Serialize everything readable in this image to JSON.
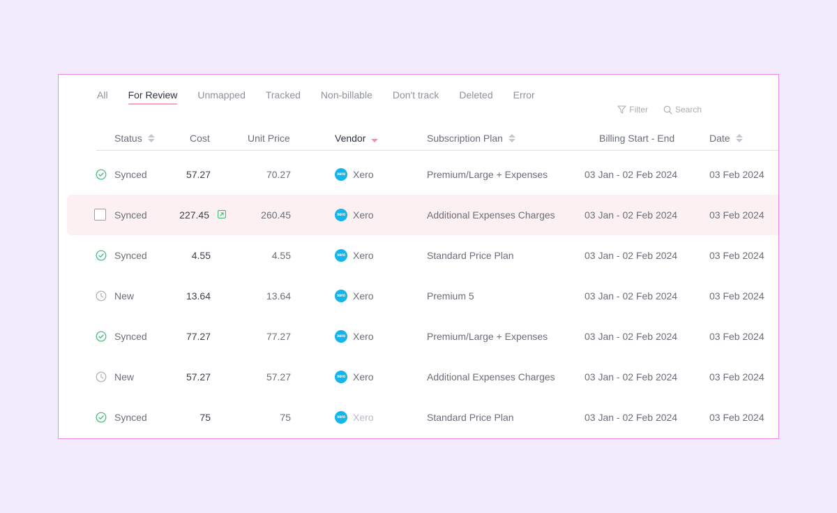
{
  "tabs": [
    {
      "label": "All",
      "active": false
    },
    {
      "label": "For Review",
      "active": true
    },
    {
      "label": "Unmapped",
      "active": false
    },
    {
      "label": "Tracked",
      "active": false
    },
    {
      "label": "Non-billable",
      "active": false
    },
    {
      "label": "Don't track",
      "active": false
    },
    {
      "label": "Deleted",
      "active": false
    },
    {
      "label": "Error",
      "active": false
    }
  ],
  "toolbar": {
    "filter_label": "Filter",
    "search_label": "Search",
    "filter_icon": "filter-icon",
    "search_icon": "search-icon"
  },
  "columns": {
    "status": "Status",
    "cost": "Cost",
    "unit_price": "Unit Price",
    "vendor": "Vendor",
    "plan": "Subscription Plan",
    "billing": "Billing Start - End",
    "date": "Date"
  },
  "vendor_logo_text": "xero",
  "colors": {
    "accent": "#f4a3c8",
    "synced": "#3cb878",
    "new": "#a9acb4",
    "highlight_row": "#fdf0f3",
    "xero": "#13b5ea",
    "border": "#ee86ee",
    "background": "#f2ecfd"
  },
  "rows": [
    {
      "status": "Synced",
      "status_icon": "check-circle-icon",
      "cost": "57.27",
      "unit_price": "70.27",
      "vendor": "Xero",
      "plan": "Premium/Large + Expenses",
      "billing": "03 Jan - 02 Feb 2024",
      "date": "03 Feb 2024"
    },
    {
      "status": "Synced",
      "status_icon": "checkbox",
      "highlighted": true,
      "cost": "227.45",
      "cost_icon": "external-link-icon",
      "unit_price": "260.45",
      "vendor": "Xero",
      "plan": "Additional Expenses Charges",
      "billing": "03 Jan - 02 Feb 2024",
      "date": "03 Feb 2024"
    },
    {
      "status": "Synced",
      "status_icon": "check-circle-icon",
      "cost": "4.55",
      "unit_price": "4.55",
      "vendor": "Xero",
      "plan": "Standard Price Plan",
      "billing": "03 Jan - 02 Feb 2024",
      "date": "03 Feb 2024"
    },
    {
      "status": "New",
      "status_icon": "clock-icon",
      "cost": "13.64",
      "unit_price": "13.64",
      "vendor": "Xero",
      "plan": "Premium 5",
      "billing": "03 Jan - 02 Feb 2024",
      "date": "03 Feb 2024"
    },
    {
      "status": "Synced",
      "status_icon": "check-circle-icon",
      "cost": "77.27",
      "unit_price": "77.27",
      "vendor": "Xero",
      "plan": "Premium/Large + Expenses",
      "billing": "03 Jan - 02 Feb 2024",
      "date": "03 Feb 2024"
    },
    {
      "status": "New",
      "status_icon": "clock-icon",
      "cost": "57.27",
      "unit_price": "57.27",
      "vendor": "Xero",
      "plan": "Additional Expenses Charges",
      "billing": "03 Jan - 02 Feb 2024",
      "date": "03 Feb 2024"
    },
    {
      "status": "Synced",
      "status_icon": "check-circle-icon",
      "cost": "75",
      "unit_price": "75",
      "vendor": "Xero",
      "vendor_faded": true,
      "plan": "Standard Price Plan",
      "billing": "03 Jan - 02 Feb 2024",
      "date": "03 Feb 2024"
    }
  ]
}
